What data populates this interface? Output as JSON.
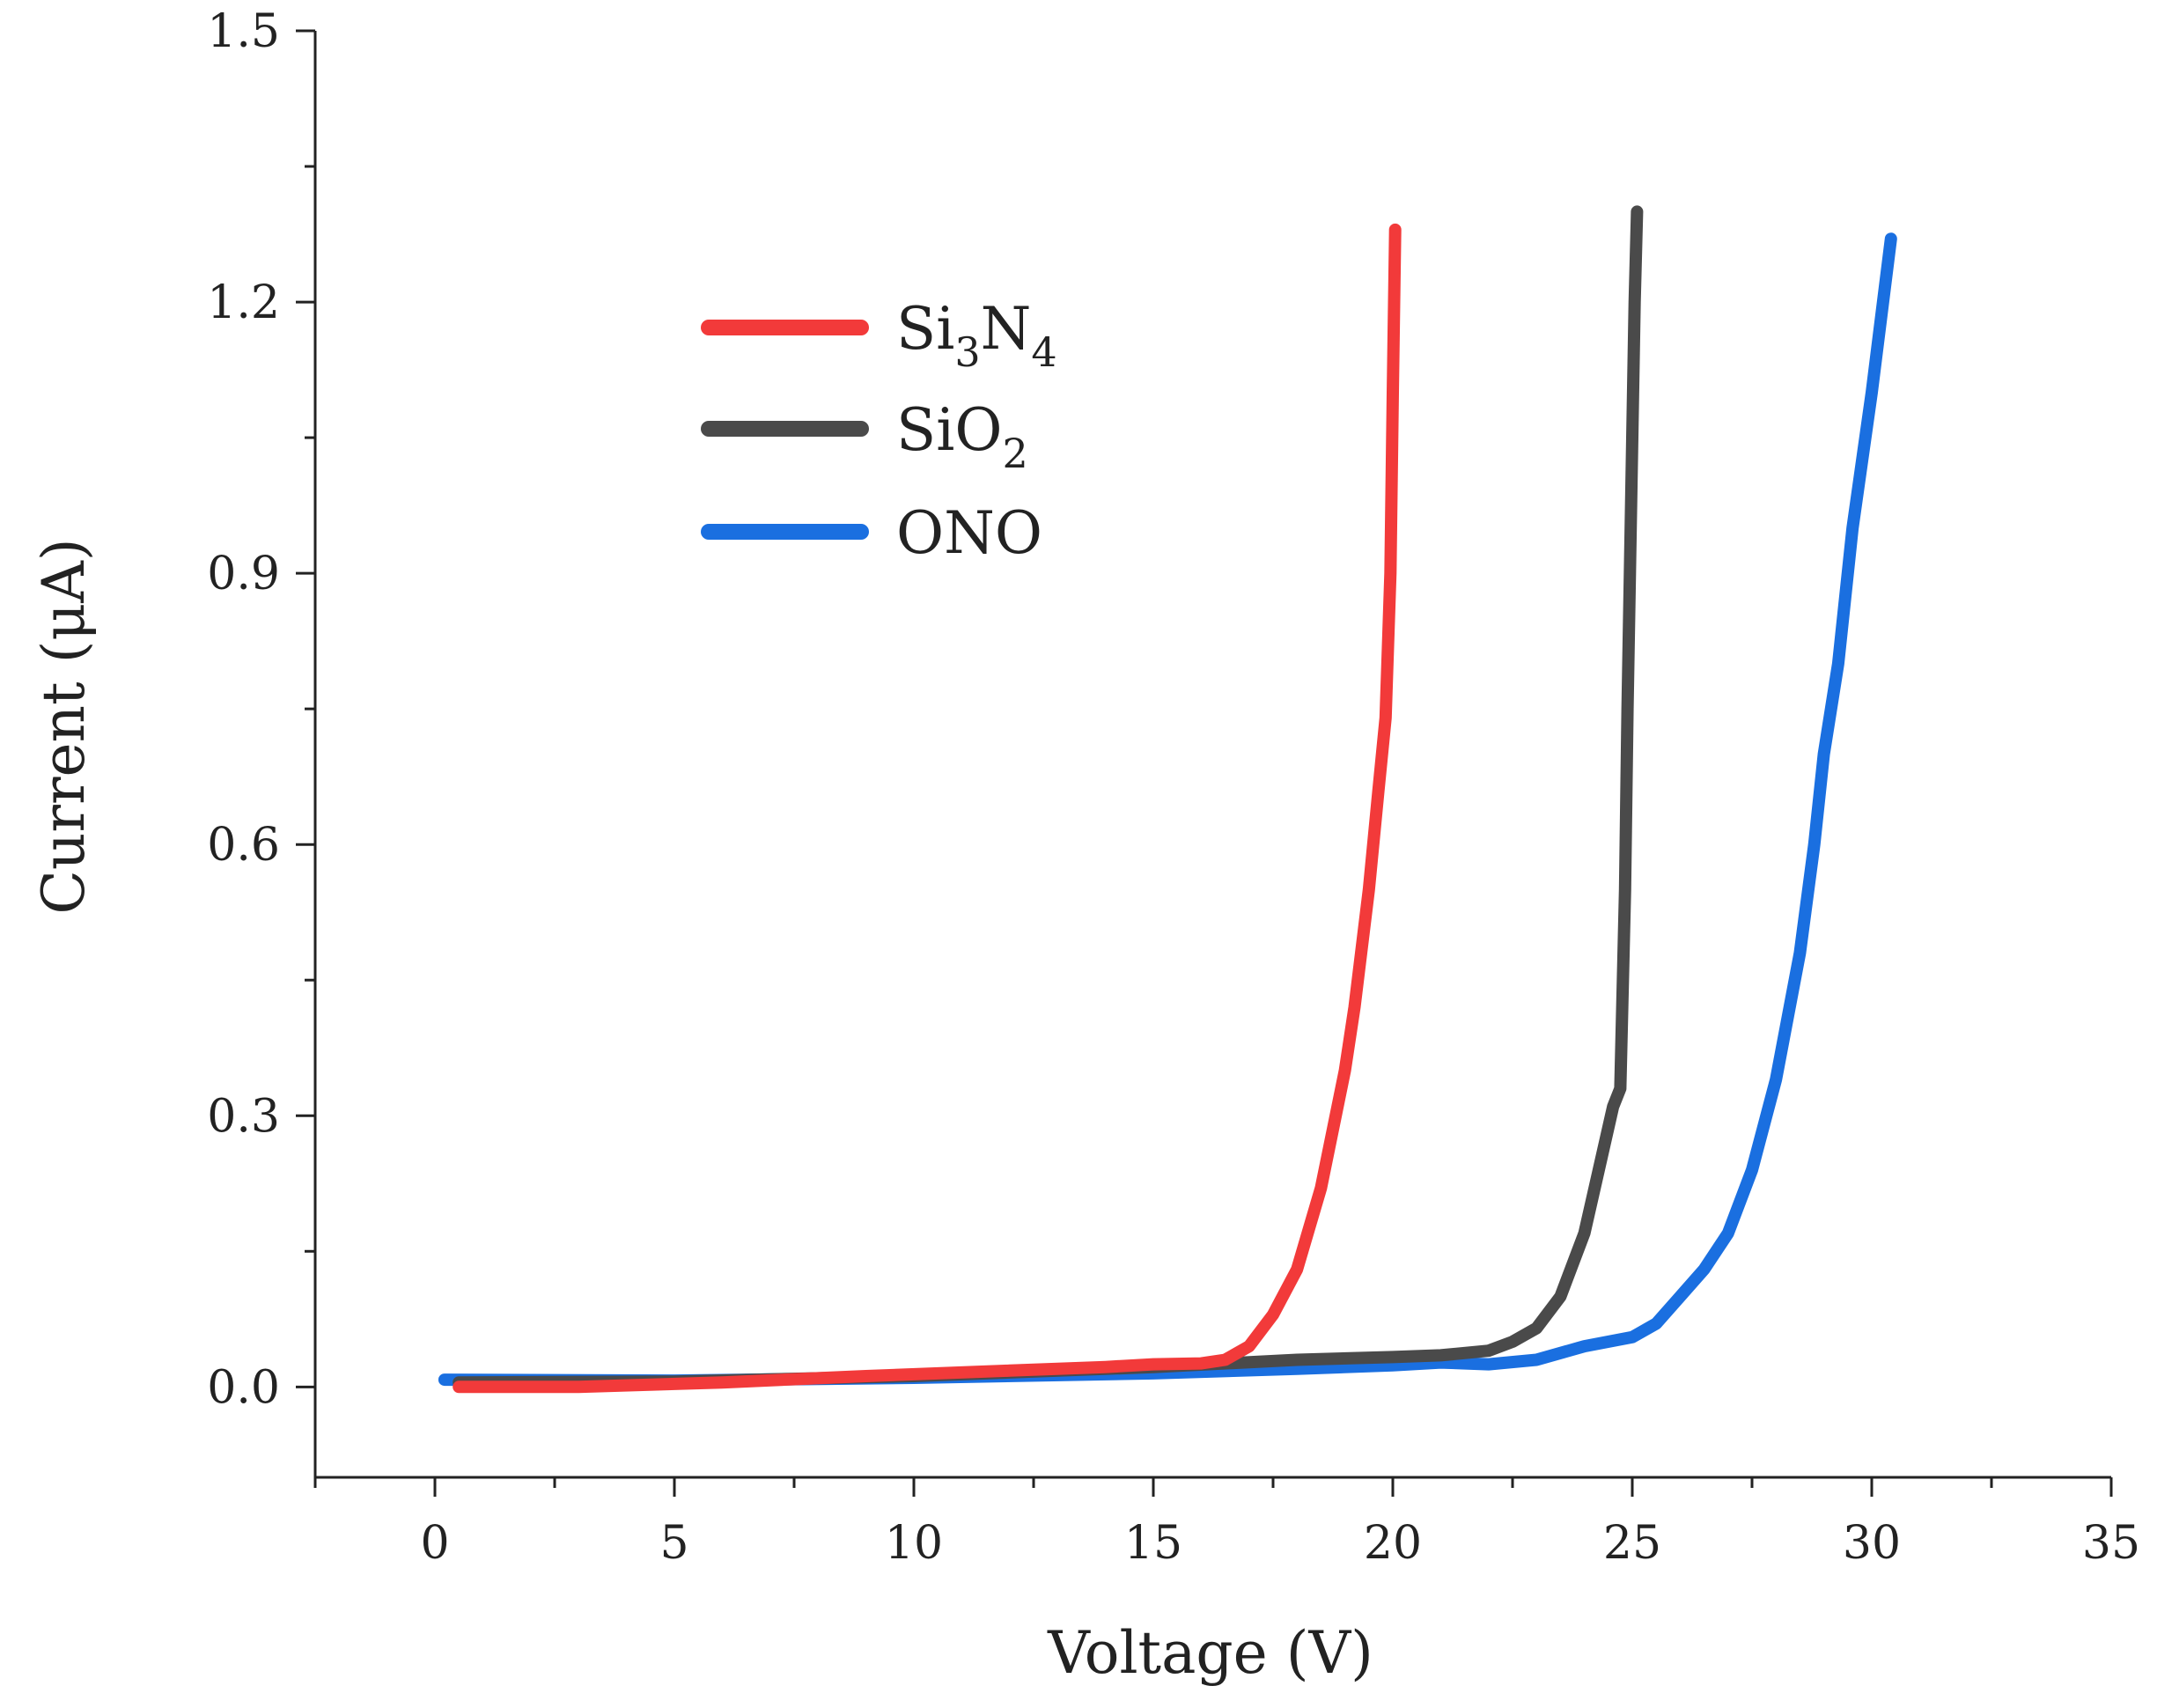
{
  "chart_data": {
    "type": "line",
    "title": "",
    "xlabel": "Voltage (V)",
    "ylabel": "Current (μA)",
    "xlim": [
      -2.5,
      35
    ],
    "ylim": [
      -0.1,
      1.5
    ],
    "xticks": [
      0,
      5,
      10,
      15,
      20,
      25,
      30,
      35
    ],
    "xtick_labels": [
      "0",
      "5",
      "10",
      "15",
      "20",
      "25",
      "30",
      "35"
    ],
    "yticks": [
      0.0,
      0.3,
      0.6,
      0.9,
      1.2,
      1.5
    ],
    "ytick_labels": [
      "0.0",
      "0.3",
      "0.6",
      "0.9",
      "1.2",
      "1.5"
    ],
    "grid": false,
    "legend_position": "upper-left",
    "series": [
      {
        "name": "Si3N4",
        "label_base": "Si",
        "label_sub1": "3",
        "label_mid": "N",
        "label_sub2": "4",
        "color": "#f23a3a",
        "x": [
          0.5,
          3,
          6,
          9,
          12,
          14,
          15,
          16,
          16.5,
          17,
          17.5,
          18,
          18.5,
          19,
          19.2,
          19.5,
          19.7,
          19.85,
          19.95,
          20.0,
          20.05
        ],
        "y": [
          0.0,
          0.0,
          0.005,
          0.012,
          0.018,
          0.022,
          0.025,
          0.026,
          0.03,
          0.045,
          0.08,
          0.13,
          0.22,
          0.35,
          0.42,
          0.55,
          0.66,
          0.74,
          0.9,
          1.1,
          1.28
        ]
      },
      {
        "name": "SiO2",
        "label_base": "SiO",
        "label_sub1": "2",
        "label_mid": "",
        "label_sub2": "",
        "color": "#4a4a4a",
        "x": [
          0.5,
          5,
          10,
          15,
          18,
          20,
          21,
          22,
          22.5,
          23,
          23.5,
          24,
          24.3,
          24.6,
          24.75,
          24.85,
          24.9,
          24.95,
          25.0,
          25.05,
          25.1
        ],
        "y": [
          0.005,
          0.006,
          0.012,
          0.022,
          0.03,
          0.033,
          0.035,
          0.04,
          0.05,
          0.065,
          0.1,
          0.17,
          0.24,
          0.31,
          0.33,
          0.55,
          0.75,
          0.9,
          1.05,
          1.2,
          1.3
        ]
      },
      {
        "name": "ONO",
        "label_base": "ONO",
        "label_sub1": "",
        "label_mid": "",
        "label_sub2": "",
        "color": "#1a6fe0",
        "x": [
          0.2,
          5,
          10,
          15,
          18,
          20,
          21,
          22,
          23,
          24,
          25,
          25.5,
          26,
          26.5,
          27,
          27.5,
          28,
          28.5,
          28.8,
          29.0,
          29.3,
          29.6,
          30.0,
          30.4
        ],
        "y": [
          0.008,
          0.007,
          0.01,
          0.015,
          0.02,
          0.024,
          0.027,
          0.025,
          0.03,
          0.045,
          0.055,
          0.07,
          0.1,
          0.13,
          0.17,
          0.24,
          0.34,
          0.48,
          0.6,
          0.7,
          0.8,
          0.95,
          1.1,
          1.27
        ]
      }
    ]
  }
}
